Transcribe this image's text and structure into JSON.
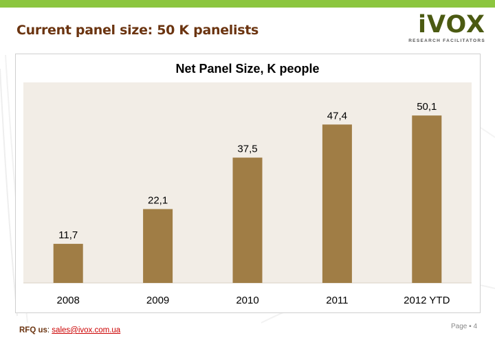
{
  "slide": {
    "title": "Current panel size: 50 K panelists",
    "logo_word": "iVOX",
    "logo_sub": "RESEARCH FACILITATORS"
  },
  "footer": {
    "rfq_label": "RFQ us",
    "rfq_separator": ":",
    "email": "sales@ivox.com.ua",
    "page_label": "Page",
    "page_bullet": "▪",
    "page_number": "4"
  },
  "colors": {
    "accent_green": "#8cc63f",
    "title_brown": "#6b3410",
    "bar_fill": "#a07d45",
    "plot_bg": "#f2ede6"
  },
  "chart_data": {
    "type": "bar",
    "title": "Net Panel Size, K people",
    "categories": [
      "2008",
      "2009",
      "2010",
      "2011",
      "2012 YTD"
    ],
    "values": [
      11.7,
      22.1,
      37.5,
      47.4,
      50.1
    ],
    "value_labels": [
      "11,7",
      "22,1",
      "37,5",
      "47,4",
      "50,1"
    ],
    "xlabel": "",
    "ylabel": "",
    "ylim": [
      0,
      60
    ],
    "grid": false,
    "legend": "none"
  }
}
